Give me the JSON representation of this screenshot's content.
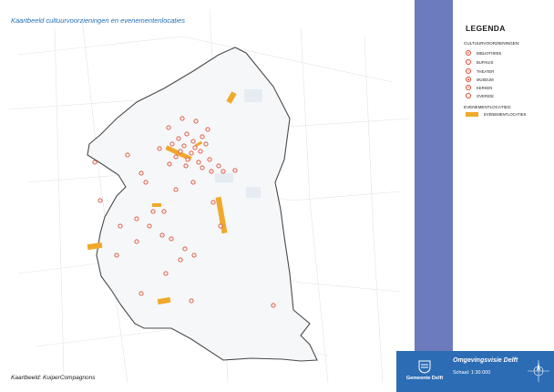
{
  "map": {
    "title": "Kaartbeeld cultuurvoorzieningen en evenementenlocaties",
    "credit": "Kaartbeeld: KuiperCompagnons"
  },
  "legend": {
    "title": "LEGENDA",
    "culture_heading": "CULTUURVOORZIENINGEN:",
    "culture_items": [
      {
        "label": "BIBLIOTHEEK",
        "icon": "library-icon",
        "glyph": "B"
      },
      {
        "label": "BUFHUIS",
        "icon": "community-house-icon",
        "glyph": "♪"
      },
      {
        "label": "THEATER",
        "icon": "theater-icon",
        "glyph": "✦"
      },
      {
        "label": "MUSEUM",
        "icon": "museum-icon",
        "glyph": "◆"
      },
      {
        "label": "KERKEN",
        "icon": "church-icon",
        "glyph": "✝"
      },
      {
        "label": "OVERIGE",
        "icon": "other-icon",
        "glyph": ""
      }
    ],
    "event_heading": "EVENEMENTLOCATIES:",
    "event_items": [
      {
        "label": "EVENEMENTLOCATIES",
        "icon": "event-location-swatch"
      }
    ]
  },
  "footer": {
    "organization": "Gemeente Delft",
    "title": "Omgevingsvisie Delft",
    "scale": "Schaal: 1:30.000"
  },
  "colors": {
    "culture_marker": "#d9452b",
    "event_location": "#f0a92c",
    "boundary": "#4a4a4a",
    "side_band": "#6b7bbd",
    "footer": "#2b6cb5"
  }
}
